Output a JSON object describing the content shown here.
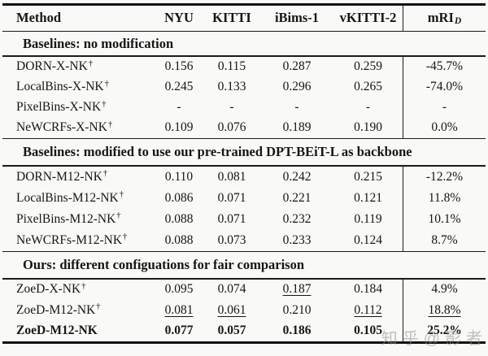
{
  "watermark": "知乎@影者",
  "table": {
    "header": {
      "method": "Method",
      "nyu": "NYU",
      "kitti": "KITTI",
      "ibims": "iBims-1",
      "vkitti": "vKITTI-2",
      "mri": "mRI",
      "mri_sub": "D"
    },
    "sections": [
      {
        "title": "Baselines: no modification",
        "rows": [
          {
            "method": "DORN-X-NK",
            "sup": "†",
            "nyu": "0.156",
            "kitti": "0.115",
            "ibims": "0.287",
            "vkitti": "0.259",
            "mri": "-45.7%"
          },
          {
            "method": "LocalBins-X-NK",
            "sup": "†",
            "nyu": "0.245",
            "kitti": "0.133",
            "ibims": "0.296",
            "vkitti": "0.265",
            "mri": "-74.0%"
          },
          {
            "method": "PixelBins-X-NK",
            "sup": "†",
            "nyu": "-",
            "kitti": "-",
            "ibims": "-",
            "vkitti": "-",
            "mri": "-"
          },
          {
            "method": "NeWCRFs-X-NK",
            "sup": "†",
            "nyu": "0.109",
            "kitti": "0.076",
            "ibims": "0.189",
            "vkitti": "0.190",
            "mri": "0.0%"
          }
        ]
      },
      {
        "title": "Baselines: modified to use our pre-trained DPT-BEiT-L as backbone",
        "rows": [
          {
            "method": "DORN-M12-NK",
            "sup": "†",
            "nyu": "0.110",
            "kitti": "0.081",
            "ibims": "0.242",
            "vkitti": "0.215",
            "mri": "-12.2%"
          },
          {
            "method": "LocalBins-M12-NK",
            "sup": "†",
            "nyu": "0.086",
            "kitti": "0.071",
            "ibims": "0.221",
            "vkitti": "0.121",
            "mri": "11.8%"
          },
          {
            "method": "PixelBins-M12-NK",
            "sup": "†",
            "nyu": "0.088",
            "kitti": "0.071",
            "ibims": "0.232",
            "vkitti": "0.119",
            "mri": "10.1%"
          },
          {
            "method": "NeWCRFs-M12-NK",
            "sup": "†",
            "nyu": "0.088",
            "kitti": "0.073",
            "ibims": "0.233",
            "vkitti": "0.124",
            "mri": "8.7%"
          }
        ]
      },
      {
        "title": "Ours: different configuations for fair comparison",
        "rows": [
          {
            "method": "ZoeD-X-NK",
            "sup": "†",
            "nyu": "0.095",
            "kitti": "0.074",
            "ibims": "0.187",
            "vkitti": "0.184",
            "mri": "4.9%"
          },
          {
            "method": "ZoeD-M12-NK",
            "sup": "†",
            "nyu": "0.081",
            "kitti": "0.061",
            "ibims": "0.210",
            "vkitti": "0.112",
            "mri": "18.8%"
          },
          {
            "method": "ZoeD-M12-NK",
            "sup": "",
            "nyu": "0.077",
            "kitti": "0.057",
            "ibims": "0.186",
            "vkitti": "0.105",
            "mri": "25.2%"
          }
        ]
      }
    ]
  }
}
